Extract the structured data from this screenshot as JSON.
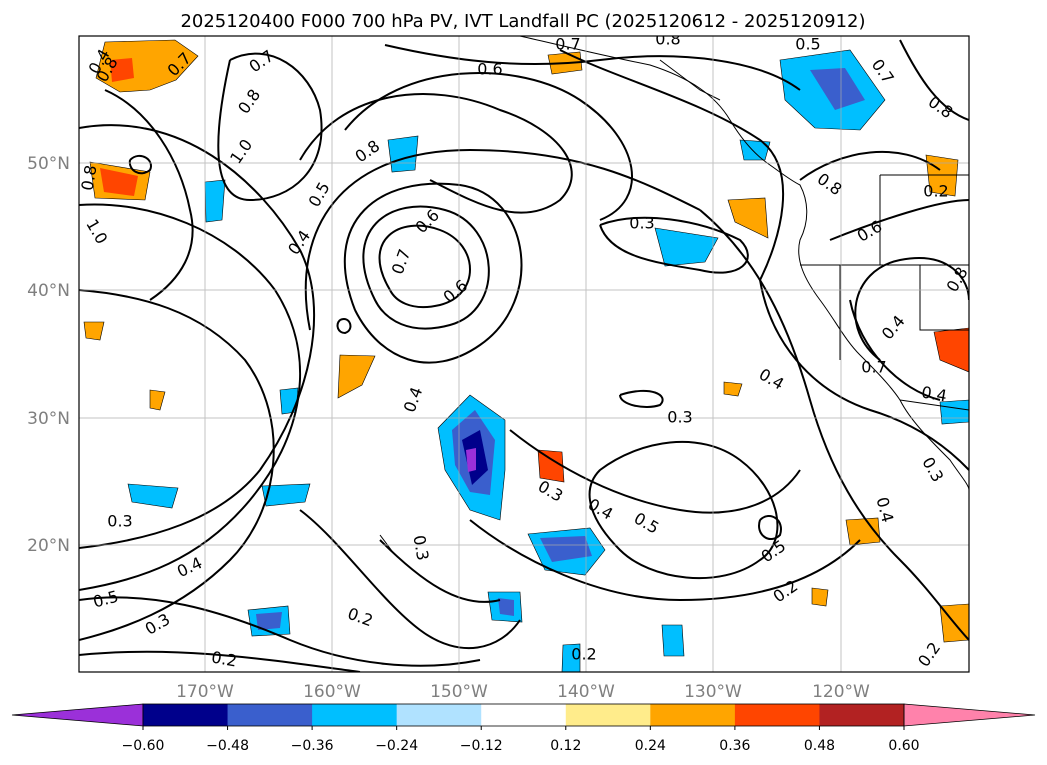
{
  "title": "2025120400 F000 700 hPa PV, IVT Landfall PC (2025120612 - 2025120912)",
  "lon_labels": [
    "170°W",
    "160°W",
    "150°W",
    "140°W",
    "130°W",
    "120°W"
  ],
  "lat_labels": [
    "50°N",
    "40°N",
    "30°N",
    "20°N"
  ],
  "colorbar": {
    "ticks": [
      "−0.60",
      "−0.48",
      "−0.36",
      "−0.24",
      "−0.12",
      "0.12",
      "0.24",
      "0.36",
      "0.48",
      "0.60"
    ],
    "colors": [
      "#9b30d9",
      "#00008b",
      "#3a5fcd",
      "#00bfff",
      "#b0e2ff",
      "#ffffff",
      "#ffec8b",
      "#ffa500",
      "#ff4500",
      "#b22222",
      "#ff82ab"
    ]
  },
  "contour_labels": [
    "0.4",
    "0.6",
    "0.7",
    "0.8",
    "1.0",
    "0.8",
    "1.0",
    "0.7",
    "0.5",
    "0.4",
    "0.8",
    "0.6",
    "0.7",
    "0.6",
    "0.7",
    "0.8",
    "0.5",
    "0.7",
    "0.8",
    "0.8",
    "0.3",
    "0.6",
    "0.8",
    "0.4",
    "0.7",
    "0.4",
    "0.3",
    "0.3",
    "0.3",
    "0.4",
    "0.5",
    "0.5",
    "0.4",
    "0.3",
    "0.2",
    "0.4",
    "0.3",
    "0.5",
    "0.3",
    "0.2",
    "0.2",
    "0.2",
    "0.2",
    "0.2",
    "0.8",
    "0.4",
    "0.4"
  ],
  "chart_data": {
    "type": "contour-map",
    "title": "2025120400 F000 700 hPa PV, IVT Landfall PC (2025120612 - 2025120912)",
    "field_contoured": "700 hPa PV",
    "field_shaded": "IVT Landfall PC",
    "lon_range": [
      -180,
      -110
    ],
    "lat_range": [
      10,
      60
    ],
    "gridlines": true,
    "colorbar_levels": [
      -0.6,
      -0.48,
      -0.36,
      -0.24,
      -0.12,
      0.12,
      0.24,
      0.36,
      0.48,
      0.6
    ]
  }
}
